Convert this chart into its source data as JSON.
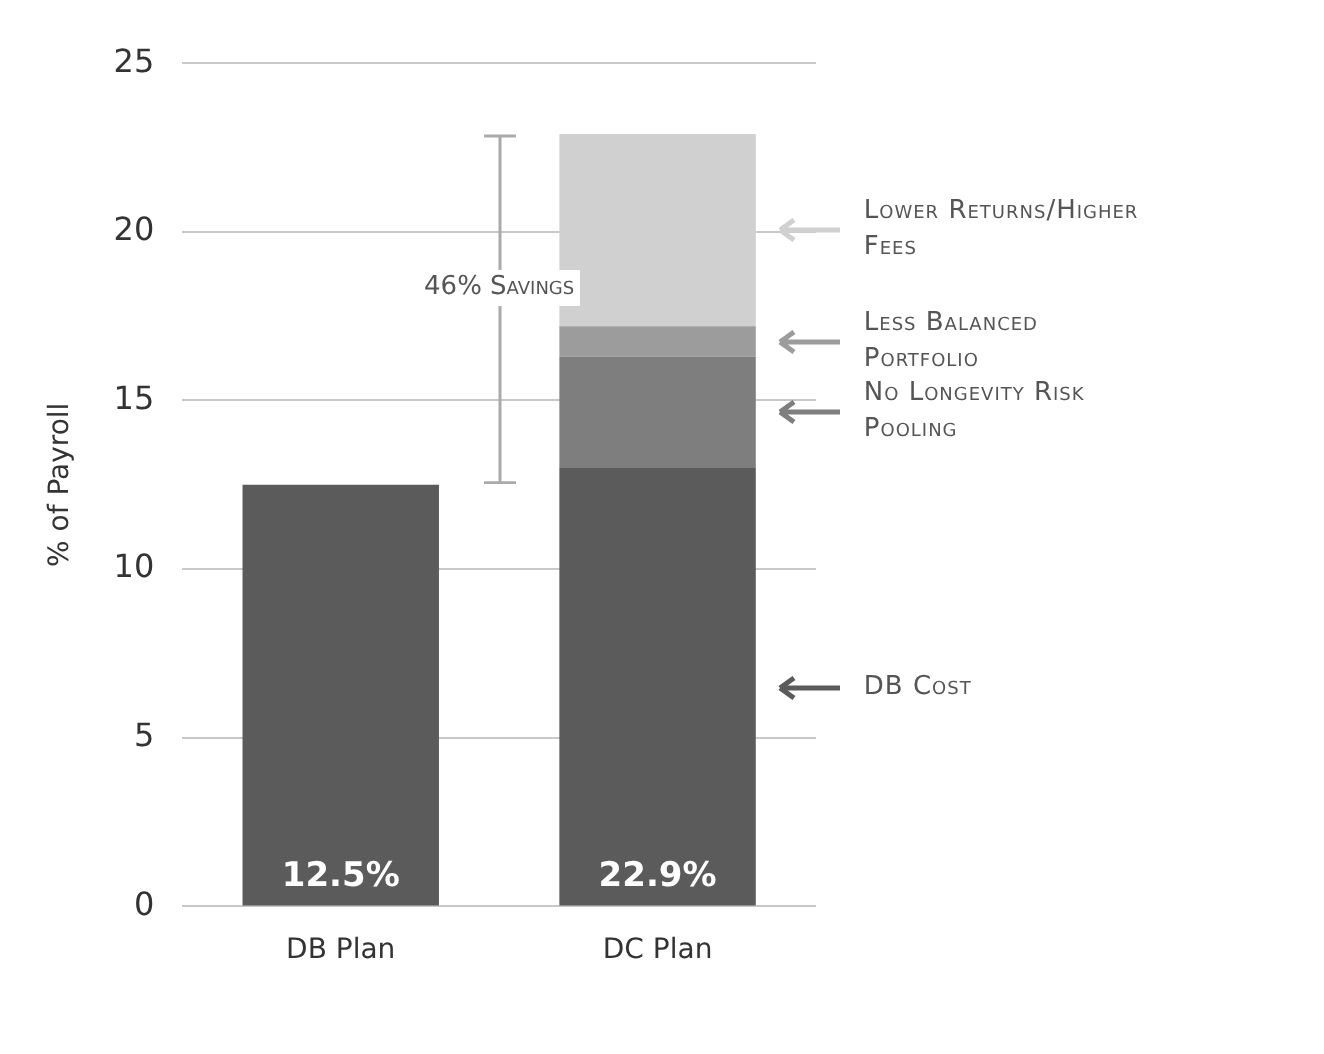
{
  "chart_data": {
    "type": "bar",
    "stacked": true,
    "categories": [
      "DB Plan",
      "DC Plan"
    ],
    "series": [
      {
        "name": "DB Cost",
        "color": "#5b5b5b",
        "values": [
          12.5,
          13.0
        ]
      },
      {
        "name": "No Longevity Risk Pooling",
        "color": "#7e7e7e",
        "values": [
          null,
          3.3
        ]
      },
      {
        "name": "Less Balanced Portfolio",
        "color": "#9c9c9c",
        "values": [
          null,
          0.9
        ]
      },
      {
        "name": "Lower Returns/Higher Fees",
        "color": "#d0d0d0",
        "values": [
          null,
          5.7
        ]
      }
    ],
    "totals": [
      "12.5%",
      "22.9%"
    ],
    "annotations": [
      "46% Savings"
    ],
    "ylabel": "% of Payroll",
    "ylim": [
      0,
      25
    ],
    "yticks": [
      0,
      5,
      10,
      15,
      20,
      25
    ],
    "grid": "y",
    "legend": "right"
  }
}
